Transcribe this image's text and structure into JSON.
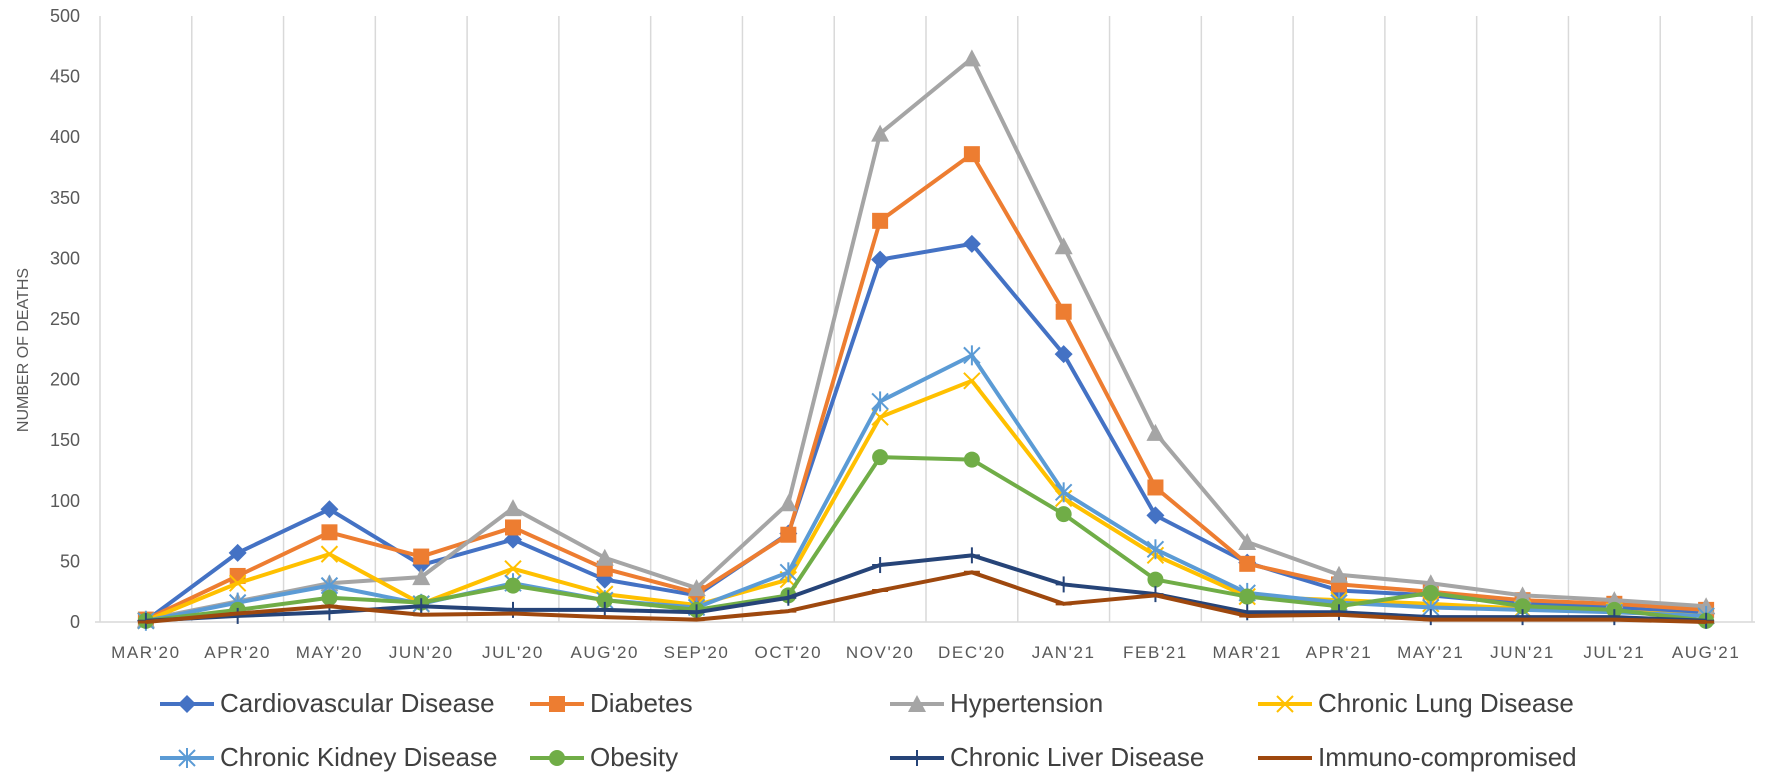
{
  "chart_data": {
    "type": "line",
    "ylabel": "NUMBER OF DEATHS",
    "xlabel": "",
    "ylim": [
      0,
      500
    ],
    "yticks": [
      "0",
      "50",
      "100",
      "150",
      "200",
      "250",
      "300",
      "350",
      "400",
      "450",
      "500"
    ],
    "grid": "vertical",
    "legend_position": "bottom",
    "categories": [
      "MAR'20",
      "APR'20",
      "MAY'20",
      "JUN'20",
      "JUL'20",
      "AUG'20",
      "SEP'20",
      "OCT'20",
      "NOV'20",
      "DEC'20",
      "JAN'21",
      "FEB'21",
      "MAR'21",
      "APR'21",
      "MAY'21",
      "JUN'21",
      "JUL'21",
      "AUG'21"
    ],
    "series": [
      {
        "name": "Cardiovascular Disease",
        "color": "#4472C4",
        "marker": "diamond",
        "values": [
          1,
          57,
          93,
          47,
          68,
          35,
          22,
          73,
          299,
          312,
          221,
          88,
          49,
          26,
          22,
          15,
          12,
          7
        ]
      },
      {
        "name": "Diabetes",
        "color": "#ED7D31",
        "marker": "square",
        "values": [
          2,
          38,
          74,
          54,
          78,
          44,
          24,
          72,
          331,
          386,
          256,
          111,
          48,
          31,
          25,
          18,
          15,
          10
        ]
      },
      {
        "name": "Hypertension",
        "color": "#A5A5A5",
        "marker": "triangle",
        "values": [
          2,
          17,
          32,
          37,
          94,
          53,
          28,
          98,
          403,
          465,
          310,
          156,
          66,
          39,
          32,
          22,
          18,
          13
        ]
      },
      {
        "name": "Chronic Lung Disease",
        "color": "#FFC000",
        "marker": "x",
        "values": [
          1,
          32,
          56,
          15,
          44,
          23,
          14,
          35,
          169,
          199,
          102,
          55,
          21,
          18,
          15,
          11,
          9,
          5
        ]
      },
      {
        "name": "Chronic Kidney Disease",
        "color": "#5B9BD5",
        "marker": "star",
        "values": [
          1,
          16,
          30,
          15,
          32,
          18,
          12,
          41,
          182,
          220,
          107,
          60,
          24,
          16,
          12,
          10,
          8,
          5
        ]
      },
      {
        "name": "Obesity",
        "color": "#70AD47",
        "marker": "circle",
        "values": [
          1,
          10,
          20,
          16,
          30,
          18,
          10,
          22,
          136,
          134,
          89,
          35,
          21,
          13,
          24,
          13,
          10,
          1
        ]
      },
      {
        "name": "Chronic Liver Disease",
        "color": "#264478",
        "marker": "plus",
        "values": [
          1,
          5,
          8,
          13,
          10,
          10,
          8,
          20,
          47,
          55,
          31,
          23,
          8,
          8,
          4,
          4,
          4,
          1
        ]
      },
      {
        "name": "Immuno-compromised",
        "color": "#9E480E",
        "marker": "dash",
        "values": [
          0,
          7,
          13,
          6,
          7,
          4,
          2,
          9,
          26,
          41,
          15,
          22,
          5,
          6,
          2,
          2,
          2,
          0
        ]
      }
    ]
  }
}
